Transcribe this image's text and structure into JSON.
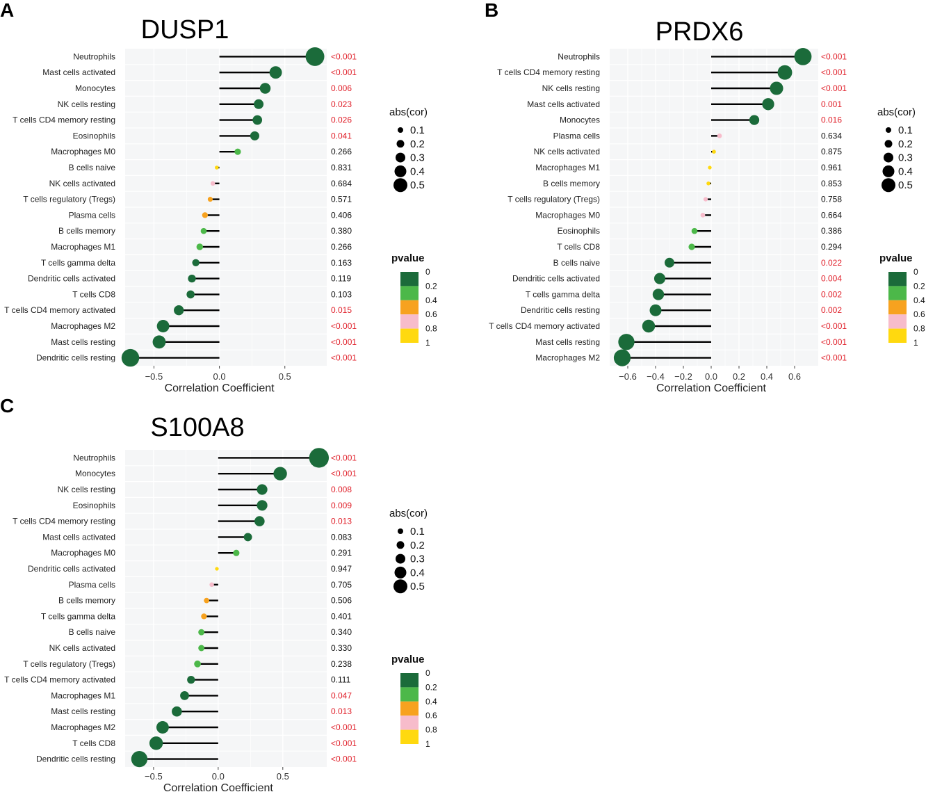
{
  "chart_data": [
    {
      "panel": "A",
      "title": "DUSP1",
      "type": "lollipop",
      "xlabel": "Correlation Coefficient",
      "xlim": [
        -0.72,
        0.82
      ],
      "xticks": [
        -0.5,
        0.0,
        0.5
      ],
      "xtick_labels": [
        "−0.5",
        "0.0",
        "0.5"
      ],
      "points": [
        {
          "label": "Neutrophils",
          "cor": 0.73,
          "p": "<0.001",
          "pnum": 0.0005
        },
        {
          "label": "Mast cells activated",
          "cor": 0.43,
          "p": "<0.001",
          "pnum": 0.0005
        },
        {
          "label": "Monocytes",
          "cor": 0.35,
          "p": "0.006",
          "pnum": 0.006
        },
        {
          "label": "NK cells resting",
          "cor": 0.3,
          "p": "0.023",
          "pnum": 0.023
        },
        {
          "label": "T cells CD4 memory resting",
          "cor": 0.29,
          "p": "0.026",
          "pnum": 0.026
        },
        {
          "label": "Eosinophils",
          "cor": 0.27,
          "p": "0.041",
          "pnum": 0.041
        },
        {
          "label": "Macrophages M0",
          "cor": 0.14,
          "p": "0.266",
          "pnum": 0.266
        },
        {
          "label": "B cells naive",
          "cor": -0.02,
          "p": "0.831",
          "pnum": 0.831
        },
        {
          "label": "NK cells activated",
          "cor": -0.05,
          "p": "0.684",
          "pnum": 0.684
        },
        {
          "label": "T cells regulatory (Tregs)",
          "cor": -0.07,
          "p": "0.571",
          "pnum": 0.571
        },
        {
          "label": "Plasma cells",
          "cor": -0.11,
          "p": "0.406",
          "pnum": 0.406
        },
        {
          "label": "B cells memory",
          "cor": -0.12,
          "p": "0.380",
          "pnum": 0.38
        },
        {
          "label": "Macrophages M1",
          "cor": -0.15,
          "p": "0.266",
          "pnum": 0.266
        },
        {
          "label": "T cells gamma delta",
          "cor": -0.18,
          "p": "0.163",
          "pnum": 0.163
        },
        {
          "label": "Dendritic cells activated",
          "cor": -0.21,
          "p": "0.119",
          "pnum": 0.119
        },
        {
          "label": "T cells CD8",
          "cor": -0.22,
          "p": "0.103",
          "pnum": 0.103
        },
        {
          "label": "T cells CD4 memory activated",
          "cor": -0.31,
          "p": "0.015",
          "pnum": 0.015
        },
        {
          "label": "Macrophages M2",
          "cor": -0.43,
          "p": "<0.001",
          "pnum": 0.0005
        },
        {
          "label": "Mast cells resting",
          "cor": -0.46,
          "p": "<0.001",
          "pnum": 0.0005
        },
        {
          "label": "Dendritic cells resting",
          "cor": -0.68,
          "p": "<0.001",
          "pnum": 0.0005
        }
      ]
    },
    {
      "panel": "B",
      "title": "PRDX6",
      "type": "lollipop",
      "xlabel": "Correlation Coefficient",
      "xlim": [
        -0.73,
        0.77
      ],
      "xticks": [
        -0.6,
        -0.4,
        -0.2,
        0.0,
        0.2,
        0.4,
        0.6
      ],
      "xtick_labels": [
        "−0.6",
        "−0.4",
        "−0.2",
        "0.0",
        "0.2",
        "0.4",
        "0.6"
      ],
      "points": [
        {
          "label": "Neutrophils",
          "cor": 0.66,
          "p": "<0.001",
          "pnum": 0.0005
        },
        {
          "label": "T cells CD4 memory resting",
          "cor": 0.53,
          "p": "<0.001",
          "pnum": 0.0005
        },
        {
          "label": "NK cells resting",
          "cor": 0.47,
          "p": "<0.001",
          "pnum": 0.0005
        },
        {
          "label": "Mast cells activated",
          "cor": 0.41,
          "p": "0.001",
          "pnum": 0.001
        },
        {
          "label": "Monocytes",
          "cor": 0.31,
          "p": "0.016",
          "pnum": 0.016
        },
        {
          "label": "Plasma cells",
          "cor": 0.06,
          "p": "0.634",
          "pnum": 0.634
        },
        {
          "label": "NK cells activated",
          "cor": 0.02,
          "p": "0.875",
          "pnum": 0.875
        },
        {
          "label": "Macrophages M1",
          "cor": -0.01,
          "p": "0.961",
          "pnum": 0.961
        },
        {
          "label": "B cells memory",
          "cor": -0.02,
          "p": "0.853",
          "pnum": 0.853
        },
        {
          "label": "T cells regulatory (Tregs)",
          "cor": -0.04,
          "p": "0.758",
          "pnum": 0.758
        },
        {
          "label": "Macrophages M0",
          "cor": -0.06,
          "p": "0.664",
          "pnum": 0.664
        },
        {
          "label": "Eosinophils",
          "cor": -0.12,
          "p": "0.386",
          "pnum": 0.386
        },
        {
          "label": "T cells CD8",
          "cor": -0.14,
          "p": "0.294",
          "pnum": 0.294
        },
        {
          "label": "B cells naive",
          "cor": -0.3,
          "p": "0.022",
          "pnum": 0.022
        },
        {
          "label": "Dendritic cells activated",
          "cor": -0.37,
          "p": "0.004",
          "pnum": 0.004
        },
        {
          "label": "T cells gamma delta",
          "cor": -0.38,
          "p": "0.002",
          "pnum": 0.002
        },
        {
          "label": "Dendritic cells resting",
          "cor": -0.4,
          "p": "0.002",
          "pnum": 0.002
        },
        {
          "label": "T cells CD4 memory activated",
          "cor": -0.45,
          "p": "<0.001",
          "pnum": 0.0005
        },
        {
          "label": "Mast cells resting",
          "cor": -0.61,
          "p": "<0.001",
          "pnum": 0.0005
        },
        {
          "label": "Macrophages M2",
          "cor": -0.64,
          "p": "<0.001",
          "pnum": 0.0005
        }
      ]
    },
    {
      "panel": "C",
      "title": "S100A8",
      "type": "lollipop",
      "xlabel": "Correlation Coefficient",
      "xlim": [
        -0.72,
        0.84
      ],
      "xticks": [
        -0.5,
        0.0,
        0.5
      ],
      "xtick_labels": [
        "−0.5",
        "0.0",
        "0.5"
      ],
      "points": [
        {
          "label": "Neutrophils",
          "cor": 0.78,
          "p": "<0.001",
          "pnum": 0.0005
        },
        {
          "label": "Monocytes",
          "cor": 0.48,
          "p": "<0.001",
          "pnum": 0.0005
        },
        {
          "label": "NK cells resting",
          "cor": 0.34,
          "p": "0.008",
          "pnum": 0.008
        },
        {
          "label": "Eosinophils",
          "cor": 0.34,
          "p": "0.009",
          "pnum": 0.009
        },
        {
          "label": "T cells CD4 memory resting",
          "cor": 0.32,
          "p": "0.013",
          "pnum": 0.013
        },
        {
          "label": "Mast cells activated",
          "cor": 0.23,
          "p": "0.083",
          "pnum": 0.083
        },
        {
          "label": "Macrophages M0",
          "cor": 0.14,
          "p": "0.291",
          "pnum": 0.291
        },
        {
          "label": "Dendritic cells activated",
          "cor": -0.01,
          "p": "0.947",
          "pnum": 0.947
        },
        {
          "label": "Plasma cells",
          "cor": -0.05,
          "p": "0.705",
          "pnum": 0.705
        },
        {
          "label": "B cells memory",
          "cor": -0.09,
          "p": "0.506",
          "pnum": 0.506
        },
        {
          "label": "T cells gamma delta",
          "cor": -0.11,
          "p": "0.401",
          "pnum": 0.401
        },
        {
          "label": "B cells naive",
          "cor": -0.13,
          "p": "0.340",
          "pnum": 0.34
        },
        {
          "label": "NK cells activated",
          "cor": -0.13,
          "p": "0.330",
          "pnum": 0.33
        },
        {
          "label": "T cells regulatory (Tregs)",
          "cor": -0.16,
          "p": "0.238",
          "pnum": 0.238
        },
        {
          "label": "T cells CD4 memory activated",
          "cor": -0.21,
          "p": "0.111",
          "pnum": 0.111
        },
        {
          "label": "Macrophages M1",
          "cor": -0.26,
          "p": "0.047",
          "pnum": 0.047
        },
        {
          "label": "Mast cells resting",
          "cor": -0.32,
          "p": "0.013",
          "pnum": 0.013
        },
        {
          "label": "Macrophages M2",
          "cor": -0.43,
          "p": "<0.001",
          "pnum": 0.0005
        },
        {
          "label": "T cells CD8",
          "cor": -0.48,
          "p": "<0.001",
          "pnum": 0.0005
        },
        {
          "label": "Dendritic cells resting",
          "cor": -0.61,
          "p": "<0.001",
          "pnum": 0.0005
        }
      ]
    }
  ],
  "legend": {
    "size_title": "abs(cor)",
    "size_values": [
      0.1,
      0.2,
      0.3,
      0.4,
      0.5
    ],
    "size_labels": [
      "0.1",
      "0.2",
      "0.3",
      "0.4",
      "0.5"
    ],
    "color_title": "pvalue",
    "color_labels": [
      "0",
      "0.2",
      "0.4",
      "0.6",
      "0.8",
      "1"
    ],
    "color_bins": [
      "#1b6b3a",
      "#4cb849",
      "#f7a21f",
      "#f7bccb",
      "#ffd90f"
    ]
  },
  "colors": {
    "significant_text": "#e0202a",
    "nonsignificant_text": "#111111",
    "panel_bg": "#f5f6f7",
    "stem": "#000000"
  }
}
